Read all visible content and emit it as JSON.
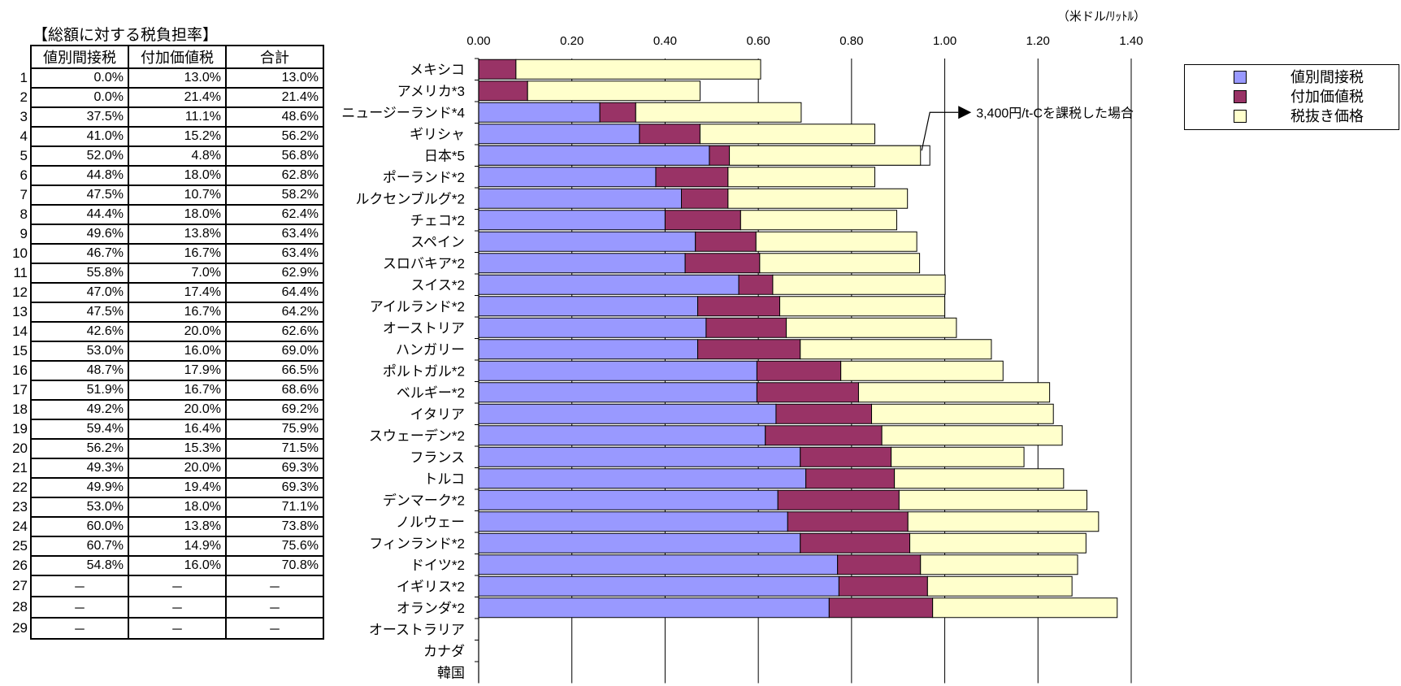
{
  "table": {
    "title": "【総額に対する税負担率】",
    "headers": [
      "値別間接税",
      "付加価値税",
      "合計"
    ],
    "rows": [
      {
        "n": "1",
        "a": "0.0%",
        "b": "13.0%",
        "c": "13.0%"
      },
      {
        "n": "2",
        "a": "0.0%",
        "b": "21.4%",
        "c": "21.4%"
      },
      {
        "n": "3",
        "a": "37.5%",
        "b": "11.1%",
        "c": "48.6%"
      },
      {
        "n": "4",
        "a": "41.0%",
        "b": "15.2%",
        "c": "56.2%"
      },
      {
        "n": "5",
        "a": "52.0%",
        "b": "4.8%",
        "c": "56.8%"
      },
      {
        "n": "6",
        "a": "44.8%",
        "b": "18.0%",
        "c": "62.8%"
      },
      {
        "n": "7",
        "a": "47.5%",
        "b": "10.7%",
        "c": "58.2%"
      },
      {
        "n": "8",
        "a": "44.4%",
        "b": "18.0%",
        "c": "62.4%"
      },
      {
        "n": "9",
        "a": "49.6%",
        "b": "13.8%",
        "c": "63.4%"
      },
      {
        "n": "10",
        "a": "46.7%",
        "b": "16.7%",
        "c": "63.4%"
      },
      {
        "n": "11",
        "a": "55.8%",
        "b": "7.0%",
        "c": "62.9%"
      },
      {
        "n": "12",
        "a": "47.0%",
        "b": "17.4%",
        "c": "64.4%"
      },
      {
        "n": "13",
        "a": "47.5%",
        "b": "16.7%",
        "c": "64.2%"
      },
      {
        "n": "14",
        "a": "42.6%",
        "b": "20.0%",
        "c": "62.6%"
      },
      {
        "n": "15",
        "a": "53.0%",
        "b": "16.0%",
        "c": "69.0%"
      },
      {
        "n": "16",
        "a": "48.7%",
        "b": "17.9%",
        "c": "66.5%"
      },
      {
        "n": "17",
        "a": "51.9%",
        "b": "16.7%",
        "c": "68.6%"
      },
      {
        "n": "18",
        "a": "49.2%",
        "b": "20.0%",
        "c": "69.2%"
      },
      {
        "n": "19",
        "a": "59.4%",
        "b": "16.4%",
        "c": "75.9%"
      },
      {
        "n": "20",
        "a": "56.2%",
        "b": "15.3%",
        "c": "71.5%"
      },
      {
        "n": "21",
        "a": "49.3%",
        "b": "20.0%",
        "c": "69.3%"
      },
      {
        "n": "22",
        "a": "49.9%",
        "b": "19.4%",
        "c": "69.3%"
      },
      {
        "n": "23",
        "a": "53.0%",
        "b": "18.0%",
        "c": "71.1%"
      },
      {
        "n": "24",
        "a": "60.0%",
        "b": "13.8%",
        "c": "73.8%"
      },
      {
        "n": "25",
        "a": "60.7%",
        "b": "14.9%",
        "c": "75.6%"
      },
      {
        "n": "26",
        "a": "54.8%",
        "b": "16.0%",
        "c": "70.8%"
      },
      {
        "n": "27",
        "a": "－",
        "b": "－",
        "c": "－"
      },
      {
        "n": "28",
        "a": "－",
        "b": "－",
        "c": "－"
      },
      {
        "n": "29",
        "a": "－",
        "b": "－",
        "c": "－"
      }
    ]
  },
  "chart_data": {
    "type": "bar",
    "orientation": "horizontal",
    "stacked": true,
    "unit_label": "（米ドル/ﾘｯﾄﾙ）",
    "xlim": [
      0,
      1.4
    ],
    "xticks": [
      "0.00",
      "0.20",
      "0.40",
      "0.60",
      "0.80",
      "1.00",
      "1.20",
      "1.40"
    ],
    "categories": [
      "メキシコ",
      "アメリカ*3",
      "ニュージーランド*4",
      "ギリシャ",
      "日本*5",
      "ポーランド*2",
      "ルクセンブルグ*2",
      "チェコ*2",
      "スペイン",
      "スロバキア*2",
      "スイス*2",
      "アイルランド*2",
      "オーストリア",
      "ハンガリー",
      "ポルトガル*2",
      "ベルギー*2",
      "イタリア",
      "スウェーデン*2",
      "フランス",
      "トルコ",
      "デンマーク*2",
      "ノルウェー",
      "フィンランド*2",
      "ドイツ*2",
      "イギリス*2",
      "オランダ*2",
      "オーストラリア",
      "カナダ",
      "韓国"
    ],
    "series": [
      {
        "name": "値別間接税",
        "color": "#9999ff",
        "values": [
          0,
          0,
          0.26,
          0.345,
          0.495,
          0.38,
          0.435,
          0.4,
          0.465,
          0.443,
          0.558,
          0.47,
          0.488,
          0.47,
          0.597,
          0.597,
          0.638,
          0.615,
          0.69,
          0.702,
          0.642,
          0.663,
          0.69,
          0.77,
          0.773,
          0.752,
          null,
          null,
          null
        ]
      },
      {
        "name": "付加価値税",
        "color": "#993366",
        "values": [
          0.08,
          0.105,
          0.077,
          0.13,
          0.043,
          0.155,
          0.1,
          0.162,
          0.13,
          0.16,
          0.073,
          0.176,
          0.172,
          0.22,
          0.18,
          0.218,
          0.205,
          0.25,
          0.195,
          0.19,
          0.26,
          0.258,
          0.235,
          0.178,
          0.19,
          0.222,
          null,
          null,
          null
        ]
      },
      {
        "name": "税抜き価格",
        "color": "#ffffcc",
        "values": [
          0.525,
          0.37,
          0.355,
          0.375,
          0.41,
          0.315,
          0.385,
          0.335,
          0.345,
          0.343,
          0.37,
          0.354,
          0.365,
          0.41,
          0.348,
          0.41,
          0.39,
          0.387,
          0.285,
          0.363,
          0.403,
          0.409,
          0.378,
          0.337,
          0.31,
          0.396,
          null,
          null,
          null
        ]
      }
    ],
    "japan_hypothetical": {
      "category": "日本*5",
      "total": 0.968
    },
    "annotation": "3,400円/t-Cを課税した場合",
    "legend_position": "right"
  }
}
